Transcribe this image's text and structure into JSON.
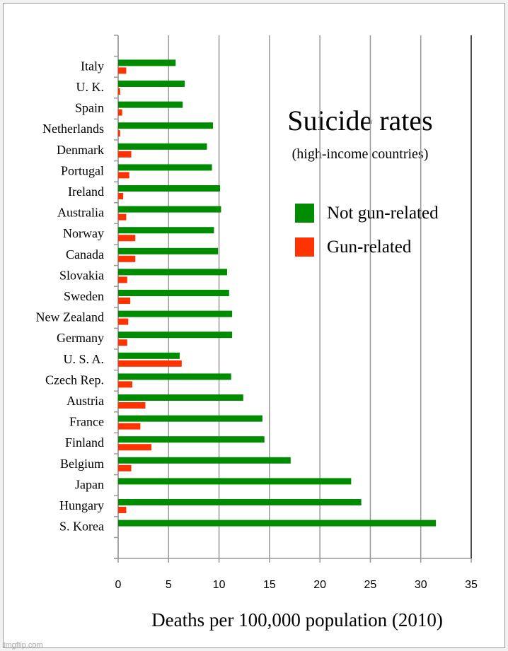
{
  "chart_data": {
    "type": "bar",
    "orientation": "horizontal",
    "title": "Suicide rates",
    "subtitle": "(high-income countries)",
    "xlabel": "Deaths per 100,000 population (2010)",
    "ylabel": "",
    "xlim": [
      0,
      35
    ],
    "xticks": [
      0,
      5,
      10,
      15,
      20,
      25,
      30,
      35
    ],
    "grid": true,
    "legend_position": "right",
    "categories": [
      "Italy",
      "U. K.",
      "Spain",
      "Netherlands",
      "Denmark",
      "Portugal",
      "Ireland",
      "Australia",
      "Norway",
      "Canada",
      "Slovakia",
      "Sweden",
      "New Zealand",
      "Germany",
      "U. S. A.",
      "Czech Rep.",
      "Austria",
      "France",
      "Finland",
      "Belgium",
      "Japan",
      "Hungary",
      "S. Korea"
    ],
    "series": [
      {
        "name": "Not gun-related",
        "color": "#008c00",
        "values": [
          5.7,
          6.6,
          6.4,
          9.4,
          8.8,
          9.3,
          10.1,
          10.2,
          9.5,
          9.9,
          10.8,
          11.0,
          11.3,
          11.3,
          6.1,
          11.2,
          12.4,
          14.3,
          14.5,
          17.1,
          23.1,
          24.1,
          31.5
        ]
      },
      {
        "name": "Gun-related",
        "color": "#ff3300",
        "values": [
          0.8,
          0.2,
          0.4,
          0.2,
          1.3,
          1.1,
          0.5,
          0.8,
          1.7,
          1.7,
          0.9,
          1.2,
          1.0,
          0.9,
          6.3,
          1.4,
          2.7,
          2.2,
          3.3,
          1.3,
          0.0,
          0.8,
          0.0
        ]
      }
    ]
  },
  "watermark": "imgflip.com"
}
